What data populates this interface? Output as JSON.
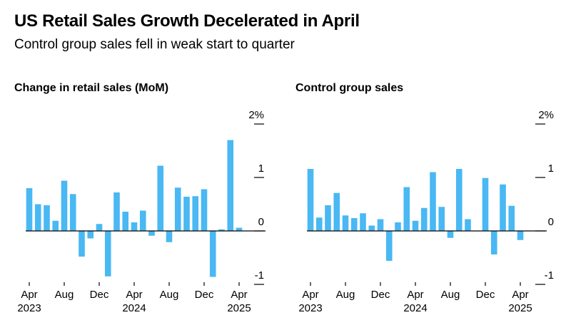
{
  "title": "US Retail Sales Growth Decelerated in April",
  "subtitle": "Control group sales fell in weak start to quarter",
  "colors": {
    "bar": "#49b8f3",
    "axis": "#000000"
  },
  "chart_data": [
    {
      "type": "bar",
      "title": "Change in retail sales (MoM)",
      "unit": "%",
      "ylim": [
        -1,
        2
      ],
      "ytick_labels": [
        "2%",
        "1",
        "0",
        "-1"
      ],
      "xtick_labels": [
        "Apr",
        "Aug",
        "Dec",
        "Apr",
        "Aug",
        "Dec",
        "Apr"
      ],
      "year_labels": [
        "2023",
        "2024",
        "2025"
      ],
      "categories": [
        "Apr 2023",
        "May 2023",
        "Jun 2023",
        "Jul 2023",
        "Aug 2023",
        "Sep 2023",
        "Oct 2023",
        "Nov 2023",
        "Dec 2023",
        "Jan 2024",
        "Feb 2024",
        "Mar 2024",
        "Apr 2024",
        "May 2024",
        "Jun 2024",
        "Jul 2024",
        "Aug 2024",
        "Sep 2024",
        "Oct 2024",
        "Nov 2024",
        "Dec 2024",
        "Jan 2025",
        "Feb 2025",
        "Mar 2025",
        "Apr 2025"
      ],
      "values": [
        0.8,
        0.5,
        0.48,
        0.19,
        0.94,
        0.69,
        -0.48,
        -0.14,
        0.13,
        -0.85,
        0.72,
        0.36,
        0.16,
        0.38,
        -0.09,
        1.22,
        -0.21,
        0.81,
        0.64,
        0.65,
        0.78,
        -0.86,
        0.03,
        1.7,
        0.06
      ]
    },
    {
      "type": "bar",
      "title": "Control group sales",
      "unit": "%",
      "ylim": [
        -1,
        2
      ],
      "ytick_labels": [
        "2%",
        "1",
        "0",
        "-1"
      ],
      "xtick_labels": [
        "Apr",
        "Aug",
        "Dec",
        "Apr",
        "Aug",
        "Dec",
        "Apr"
      ],
      "year_labels": [
        "2023",
        "2024",
        "2025"
      ],
      "categories": [
        "Apr 2023",
        "May 2023",
        "Jun 2023",
        "Jul 2023",
        "Aug 2023",
        "Sep 2023",
        "Oct 2023",
        "Nov 2023",
        "Dec 2023",
        "Jan 2024",
        "Feb 2024",
        "Mar 2024",
        "Apr 2024",
        "May 2024",
        "Jun 2024",
        "Jul 2024",
        "Aug 2024",
        "Sep 2024",
        "Oct 2024",
        "Nov 2024",
        "Dec 2024",
        "Jan 2025",
        "Feb 2025",
        "Mar 2025",
        "Apr 2025"
      ],
      "values": [
        1.16,
        0.25,
        0.48,
        0.71,
        0.29,
        0.24,
        0.33,
        0.1,
        0.22,
        -0.56,
        0.16,
        0.82,
        0.19,
        0.43,
        1.1,
        0.45,
        -0.13,
        1.16,
        0.22,
        0.0,
        0.99,
        -0.44,
        0.87,
        0.47,
        -0.17
      ]
    }
  ]
}
